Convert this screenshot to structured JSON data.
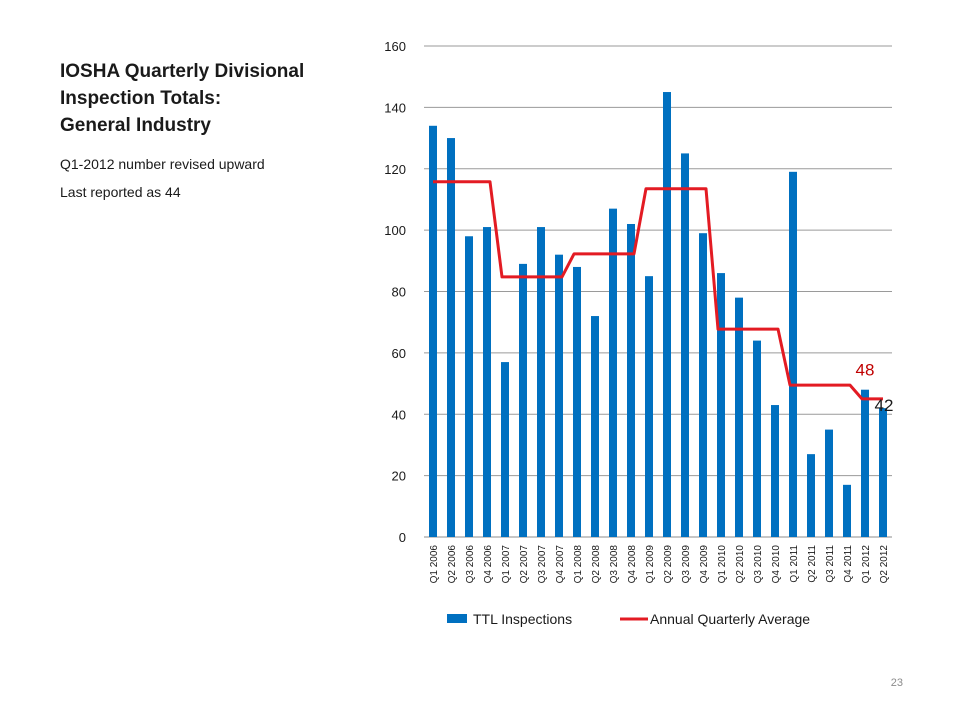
{
  "slide": {
    "title_lines": [
      "IOSHA Quarterly Divisional",
      "Inspection Totals:",
      "General Industry"
    ],
    "notes": [
      "Q1-2012 number revised upward",
      "Last reported as 44"
    ],
    "slide_number": "23"
  },
  "chart_data": {
    "type": "bar",
    "categories": [
      "Q1 2006",
      "Q2 2006",
      "Q3 2006",
      "Q4 2006",
      "Q1 2007",
      "Q2 2007",
      "Q3 2007",
      "Q4 2007",
      "Q1 2008",
      "Q2 2008",
      "Q3 2008",
      "Q4 2008",
      "Q1 2009",
      "Q2 2009",
      "Q3 2009",
      "Q4 2009",
      "Q1 2010",
      "Q2 2010",
      "Q3 2010",
      "Q4 2010",
      "Q1 2011",
      "Q2 2011",
      "Q3 2011",
      "Q4 2011",
      "Q1 2012",
      "Q2 2012"
    ],
    "series": [
      {
        "name": "TTL Inspections",
        "type": "bar",
        "color": "#0070C0",
        "values": [
          134,
          130,
          98,
          101,
          57,
          89,
          101,
          92,
          88,
          72,
          107,
          102,
          85,
          145,
          125,
          99,
          86,
          78,
          64,
          43,
          119,
          27,
          35,
          17,
          48,
          42
        ]
      },
      {
        "name": "Annual Quarterly Average",
        "type": "step-line",
        "color": "#E31B23",
        "values": [
          115.75,
          115.75,
          115.75,
          115.75,
          84.75,
          84.75,
          84.75,
          84.75,
          92.25,
          92.25,
          92.25,
          92.25,
          113.5,
          113.5,
          113.5,
          113.5,
          67.75,
          67.75,
          67.75,
          67.75,
          49.5,
          49.5,
          49.5,
          49.5,
          45,
          45
        ]
      }
    ],
    "ylim": [
      0,
      160
    ],
    "yticks": [
      0,
      20,
      40,
      60,
      80,
      100,
      120,
      140,
      160
    ],
    "grid": true,
    "legend_position": "bottom",
    "annotations": [
      {
        "text": "48",
        "color": "#C00000",
        "category": "Q1 2012",
        "value": 48
      },
      {
        "text": "42",
        "color": "#1a1a1a",
        "category": "Q2 2012",
        "value": 42
      }
    ]
  }
}
